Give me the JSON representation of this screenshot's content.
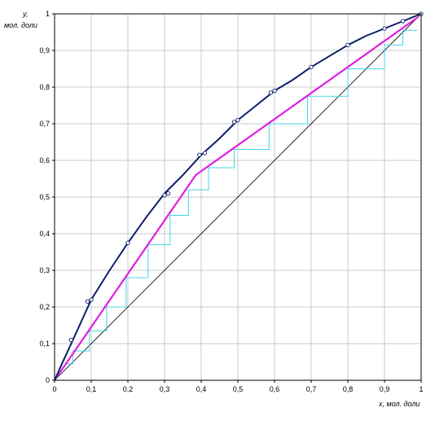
{
  "chart_data": {
    "type": "line",
    "ylabel_line1": "y,",
    "ylabel_line2": "мол. доли",
    "xlabel": "x, мол. доли",
    "xlim": [
      0,
      1
    ],
    "ylim": [
      0,
      1
    ],
    "grid": true,
    "x_ticks": [
      "0",
      "0,1",
      "0,2",
      "0,3",
      "0,4",
      "0,5",
      "0,6",
      "0,7",
      "0,8",
      "0,9",
      "1"
    ],
    "y_ticks": [
      "0",
      "0,1",
      "0,2",
      "0,3",
      "0,4",
      "0,5",
      "0,6",
      "0,7",
      "0,8",
      "0,9",
      "1"
    ],
    "colors": {
      "equilibrium": "#0b1e6b",
      "operating": "#e020e0",
      "steps": "#40d8e8",
      "diagonal": "#000000",
      "grid": "#c8c8c8"
    },
    "series": [
      {
        "kind": "equilibrium",
        "x": [
          0,
          0.02,
          0.05,
          0.1,
          0.15,
          0.2,
          0.25,
          0.3,
          0.35,
          0.4,
          0.45,
          0.5,
          0.55,
          0.6,
          0.65,
          0.7,
          0.75,
          0.8,
          0.85,
          0.9,
          0.95,
          1.0
        ],
        "y": [
          0,
          0.045,
          0.11,
          0.22,
          0.3,
          0.375,
          0.445,
          0.51,
          0.56,
          0.615,
          0.66,
          0.71,
          0.75,
          0.79,
          0.82,
          0.855,
          0.885,
          0.915,
          0.94,
          0.96,
          0.98,
          1.0
        ]
      },
      {
        "kind": "experimental_points",
        "x": [
          0.045,
          0.09,
          0.1,
          0.2,
          0.3,
          0.31,
          0.395,
          0.41,
          0.49,
          0.5,
          0.59,
          0.6,
          0.7,
          0.8,
          0.9,
          0.95,
          1.0
        ],
        "y": [
          0.11,
          0.215,
          0.22,
          0.375,
          0.505,
          0.51,
          0.615,
          0.62,
          0.705,
          0.71,
          0.785,
          0.79,
          0.855,
          0.915,
          0.96,
          0.98,
          1.0
        ]
      },
      {
        "kind": "operating",
        "x": [
          0,
          0.385,
          0.99
        ],
        "y": [
          0,
          0.56,
          0.99
        ]
      },
      {
        "kind": "diagonal",
        "x": [
          0,
          1
        ],
        "y": [
          0,
          1
        ]
      },
      {
        "kind": "steps",
        "x": [
          0.03,
          0.05,
          0.05,
          0.095,
          0.095,
          0.142,
          0.142,
          0.195,
          0.195,
          0.255,
          0.255,
          0.315,
          0.315,
          0.365,
          0.365,
          0.42,
          0.42,
          0.49,
          0.49,
          0.585,
          0.585,
          0.69,
          0.69,
          0.8,
          0.8,
          0.9,
          0.9,
          0.95,
          0.95,
          0.99
        ],
        "y": [
          0.045,
          0.045,
          0.08,
          0.08,
          0.135,
          0.135,
          0.2,
          0.2,
          0.28,
          0.28,
          0.37,
          0.37,
          0.45,
          0.45,
          0.52,
          0.52,
          0.58,
          0.58,
          0.63,
          0.63,
          0.7,
          0.7,
          0.775,
          0.775,
          0.85,
          0.85,
          0.915,
          0.915,
          0.955,
          0.955
        ]
      }
    ]
  }
}
